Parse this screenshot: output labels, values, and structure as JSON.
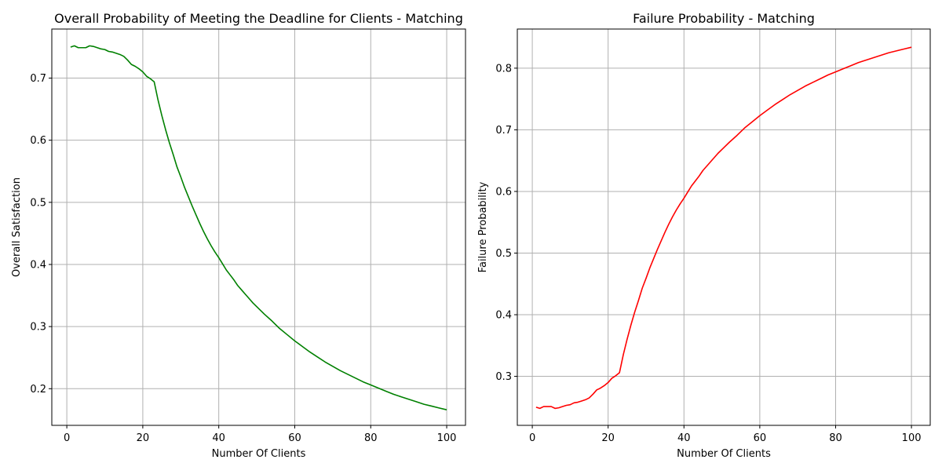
{
  "colors": {
    "background": "#ffffff",
    "grid": "#b0b0b0",
    "axis": "#000000",
    "satisfaction_line": "#008000",
    "failure_line": "#ff0000"
  },
  "chart_data": [
    {
      "type": "line",
      "title": "Overall Probability of Meeting the Deadline for Clients - Matching",
      "xlabel": "Number Of Clients",
      "ylabel": "Overall Satisfaction",
      "xlim": [
        -3.95,
        104.95
      ],
      "ylim": [
        0.141,
        0.779
      ],
      "grid": true,
      "xticks": [
        0,
        20,
        40,
        60,
        80,
        100
      ],
      "xtick_labels": [
        "0",
        "20",
        "40",
        "60",
        "80",
        "100"
      ],
      "yticks": [
        0.2,
        0.3,
        0.4,
        0.5,
        0.6,
        0.7
      ],
      "ytick_labels": [
        "0.2",
        "0.3",
        "0.4",
        "0.5",
        "0.6",
        "0.7"
      ],
      "series": [
        {
          "color": "#008000",
          "x": [
            1,
            2,
            3,
            4,
            5,
            6,
            7,
            8,
            9,
            10,
            11,
            12,
            13,
            14,
            15,
            16,
            17,
            18,
            19,
            20,
            21,
            22,
            23,
            24,
            25,
            26,
            27,
            28,
            29,
            30,
            31,
            32,
            33,
            34,
            35,
            36,
            37,
            38,
            39,
            40,
            41,
            42,
            43,
            44,
            45,
            46,
            47,
            48,
            49,
            50,
            52,
            54,
            56,
            58,
            60,
            62,
            64,
            66,
            68,
            70,
            72,
            74,
            76,
            78,
            80,
            82,
            84,
            86,
            88,
            90,
            92,
            94,
            96,
            98,
            100
          ],
          "values": [
            0.75,
            0.752,
            0.749,
            0.749,
            0.749,
            0.752,
            0.751,
            0.749,
            0.747,
            0.746,
            0.743,
            0.742,
            0.74,
            0.738,
            0.735,
            0.729,
            0.722,
            0.719,
            0.715,
            0.71,
            0.703,
            0.699,
            0.694,
            0.665,
            0.64,
            0.617,
            0.596,
            0.577,
            0.557,
            0.541,
            0.524,
            0.509,
            0.494,
            0.48,
            0.466,
            0.453,
            0.441,
            0.43,
            0.42,
            0.411,
            0.401,
            0.391,
            0.383,
            0.375,
            0.366,
            0.359,
            0.352,
            0.345,
            0.338,
            0.332,
            0.32,
            0.309,
            0.297,
            0.287,
            0.277,
            0.268,
            0.259,
            0.251,
            0.243,
            0.236,
            0.229,
            0.223,
            0.217,
            0.211,
            0.206,
            0.201,
            0.196,
            0.191,
            0.187,
            0.183,
            0.179,
            0.175,
            0.172,
            0.169,
            0.166
          ]
        }
      ]
    },
    {
      "type": "line",
      "title": "Failure Probability - Matching",
      "xlabel": "Number Of Clients",
      "ylabel": "Failure Probability",
      "xlim": [
        -3.95,
        104.95
      ],
      "ylim": [
        0.2205,
        0.8635
      ],
      "grid": true,
      "xticks": [
        0,
        20,
        40,
        60,
        80,
        100
      ],
      "xtick_labels": [
        "0",
        "20",
        "40",
        "60",
        "80",
        "100"
      ],
      "yticks": [
        0.3,
        0.4,
        0.5,
        0.6,
        0.7,
        0.8
      ],
      "ytick_labels": [
        "0.3",
        "0.4",
        "0.5",
        "0.6",
        "0.7",
        "0.8"
      ],
      "series": [
        {
          "color": "#ff0000",
          "x": [
            1,
            2,
            3,
            4,
            5,
            6,
            7,
            8,
            9,
            10,
            11,
            12,
            13,
            14,
            15,
            16,
            17,
            18,
            19,
            20,
            21,
            22,
            23,
            24,
            25,
            26,
            27,
            28,
            29,
            30,
            31,
            32,
            33,
            34,
            35,
            36,
            37,
            38,
            39,
            40,
            41,
            42,
            43,
            44,
            45,
            46,
            47,
            48,
            49,
            50,
            52,
            54,
            56,
            58,
            60,
            62,
            64,
            66,
            68,
            70,
            72,
            74,
            76,
            78,
            80,
            82,
            84,
            86,
            88,
            90,
            92,
            94,
            96,
            98,
            100
          ],
          "values": [
            0.25,
            0.248,
            0.251,
            0.251,
            0.251,
            0.248,
            0.249,
            0.251,
            0.253,
            0.254,
            0.257,
            0.258,
            0.26,
            0.262,
            0.265,
            0.271,
            0.278,
            0.281,
            0.285,
            0.29,
            0.297,
            0.301,
            0.306,
            0.335,
            0.36,
            0.383,
            0.404,
            0.423,
            0.443,
            0.459,
            0.476,
            0.491,
            0.506,
            0.52,
            0.534,
            0.547,
            0.559,
            0.57,
            0.58,
            0.589,
            0.599,
            0.609,
            0.617,
            0.625,
            0.634,
            0.641,
            0.648,
            0.655,
            0.662,
            0.668,
            0.68,
            0.691,
            0.703,
            0.713,
            0.723,
            0.732,
            0.741,
            0.749,
            0.757,
            0.764,
            0.771,
            0.777,
            0.783,
            0.789,
            0.794,
            0.799,
            0.804,
            0.809,
            0.813,
            0.817,
            0.821,
            0.825,
            0.828,
            0.831,
            0.834
          ]
        }
      ]
    }
  ]
}
